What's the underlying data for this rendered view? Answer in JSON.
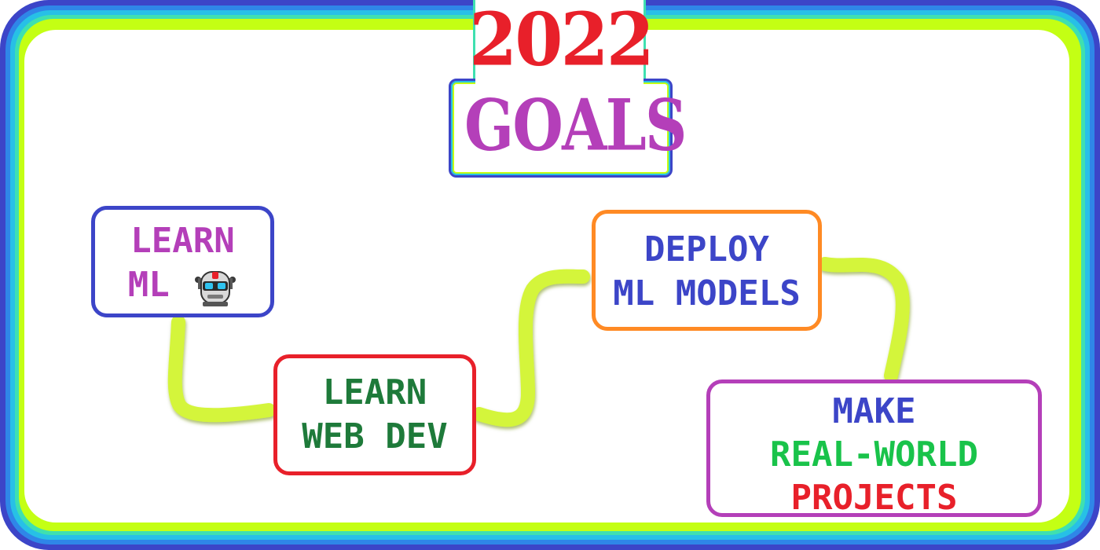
{
  "title": {
    "year": "2022",
    "word": "GOALS"
  },
  "goals": [
    {
      "lines": [
        "LEARN",
        "ML"
      ],
      "icon": "robot-icon",
      "text_color": "#b43fb9",
      "border_color": "#3c45c8"
    },
    {
      "lines": [
        "LEARN",
        "WEB DEV"
      ],
      "text_color": "#1e7a3a",
      "border_color": "#e8202a"
    },
    {
      "lines": [
        "DEPLOY",
        "ML MODELS"
      ],
      "text_color": "#3c45c8",
      "border_color": "#ff8a24"
    },
    {
      "lines": [
        "MAKE",
        "REAL-WORLD",
        "PROJECTS"
      ],
      "line_colors": [
        "#3c45c8",
        "#19c34a",
        "#e8202a"
      ],
      "border_color": "#b43fb9"
    }
  ],
  "colors": {
    "title_year": "#e8202a",
    "title_word": "#b43fb9",
    "connector": "#d4f53a",
    "frame": [
      "#3c45c8",
      "#2f86e8",
      "#27c0e6",
      "#3fe0b0",
      "#c4ff14"
    ]
  }
}
